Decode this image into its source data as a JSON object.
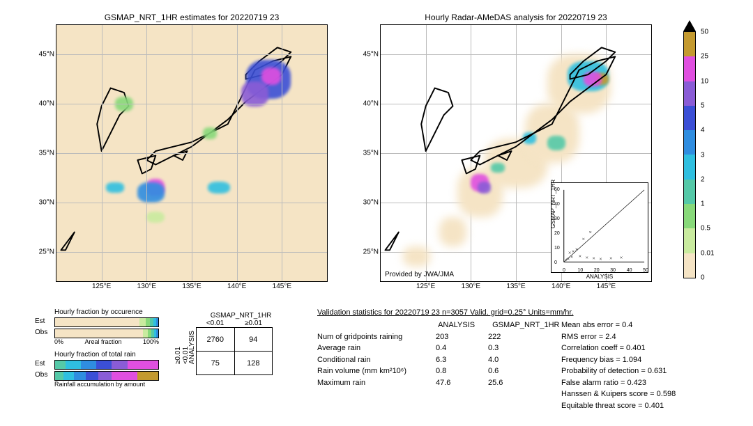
{
  "date_str": "20220719 23",
  "left_map": {
    "title": "GSMAP_NRT_1HR estimates for 20220719 23",
    "xlim": [
      120,
      150
    ],
    "ylim": [
      22,
      48
    ],
    "xticks": [
      125,
      130,
      135,
      140,
      145
    ],
    "yticks": [
      25,
      30,
      35,
      40,
      45
    ],
    "xtick_labels": [
      "125°E",
      "130°E",
      "135°E",
      "140°E",
      "145°E"
    ],
    "ytick_labels": [
      "25°N",
      "30°N",
      "35°N",
      "40°N",
      "45°N"
    ],
    "background": "#f5e4c5"
  },
  "right_map": {
    "title": "Hourly Radar-AMeDAS analysis for 20220719 23",
    "attribution": "Provided by JWA/JMA",
    "xlim": [
      120,
      150
    ],
    "ylim": [
      22,
      48
    ],
    "xticks": [
      125,
      130,
      135,
      140,
      145
    ],
    "yticks": [
      25,
      30,
      35,
      40,
      45
    ],
    "xtick_labels": [
      "125°E",
      "130°E",
      "135°E",
      "140°E",
      "145°E"
    ],
    "ytick_labels": [
      "25°N",
      "30°N",
      "35°N",
      "40°N",
      "45°N"
    ],
    "background": "#f5e4c5"
  },
  "colorbar": {
    "levels": [
      0,
      0.01,
      0.5,
      1,
      2,
      3,
      4,
      5,
      10,
      25,
      50
    ],
    "labels": [
      "0",
      "0.01",
      "0.5",
      "1",
      "2",
      "3",
      "4",
      "5",
      "10",
      "25",
      "50"
    ],
    "colors": [
      "#f5e4c5",
      "#c9eb9f",
      "#88d97a",
      "#55c9a8",
      "#2fbfe0",
      "#2f8de0",
      "#3b4fd6",
      "#8a5cd6",
      "#e04fe0",
      "#c49a2f"
    ]
  },
  "fraction_bars": {
    "occurrence_title": "Hourly fraction by occurence",
    "totalrain_title": "Hourly fraction of total rain",
    "accum_label": "Rainfall accumulation by amount",
    "areal_label": "Areal fraction",
    "pct0": "0%",
    "pct100": "100%",
    "est_label": "Est",
    "obs_label": "Obs",
    "occurrence_est_segs": [
      {
        "w": 82,
        "c": "#f5e4c5"
      },
      {
        "w": 6,
        "c": "#c9eb9f"
      },
      {
        "w": 4,
        "c": "#88d97a"
      },
      {
        "w": 3,
        "c": "#55c9a8"
      },
      {
        "w": 3,
        "c": "#2fbfe0"
      },
      {
        "w": 2,
        "c": "#2f8de0"
      }
    ],
    "occurrence_obs_segs": [
      {
        "w": 85,
        "c": "#f5e4c5"
      },
      {
        "w": 5,
        "c": "#c9eb9f"
      },
      {
        "w": 3,
        "c": "#88d97a"
      },
      {
        "w": 3,
        "c": "#55c9a8"
      },
      {
        "w": 2,
        "c": "#2fbfe0"
      },
      {
        "w": 2,
        "c": "#2f8de0"
      }
    ],
    "totalrain_est_segs": [
      {
        "w": 10,
        "c": "#55c9a8"
      },
      {
        "w": 15,
        "c": "#2fbfe0"
      },
      {
        "w": 15,
        "c": "#2f8de0"
      },
      {
        "w": 15,
        "c": "#3b4fd6"
      },
      {
        "w": 15,
        "c": "#8a5cd6"
      },
      {
        "w": 30,
        "c": "#e04fe0"
      }
    ],
    "totalrain_obs_segs": [
      {
        "w": 8,
        "c": "#55c9a8"
      },
      {
        "w": 10,
        "c": "#2fbfe0"
      },
      {
        "w": 12,
        "c": "#2f8de0"
      },
      {
        "w": 12,
        "c": "#3b4fd6"
      },
      {
        "w": 13,
        "c": "#8a5cd6"
      },
      {
        "w": 25,
        "c": "#e04fe0"
      },
      {
        "w": 20,
        "c": "#c49a2f"
      }
    ]
  },
  "contingency": {
    "col_title": "GSMAP_NRT_1HR",
    "row_title": "ANALYSIS",
    "col_lt": "<0.01",
    "col_ge": "≥0.01",
    "row_lt": "<0.01",
    "row_ge": "≥0.01",
    "a": "2760",
    "b": "94",
    "c": "75",
    "d": "128"
  },
  "validation": {
    "header": "Validation statistics for 20220719 23  n=3057 Valid. grid=0.25° Units=mm/hr.",
    "col1": "ANALYSIS",
    "col2": "GSMAP_NRT_1HR",
    "rows": [
      {
        "label": "Num of gridpoints raining",
        "v1": "203",
        "v2": "222"
      },
      {
        "label": "Average rain",
        "v1": "0.4",
        "v2": "0.3"
      },
      {
        "label": "Conditional rain",
        "v1": "6.3",
        "v2": "4.0"
      },
      {
        "label": "Rain volume (mm km²10⁶)",
        "v1": "0.8",
        "v2": "0.6"
      },
      {
        "label": "Maximum rain",
        "v1": "47.6",
        "v2": "25.6"
      }
    ],
    "metrics": [
      {
        "label": "Mean abs error = ",
        "v": "0.4"
      },
      {
        "label": "RMS error = ",
        "v": "2.4"
      },
      {
        "label": "Correlation coeff = ",
        "v": "0.401"
      },
      {
        "label": "Frequency bias = ",
        "v": "1.094"
      },
      {
        "label": "Probability of detection = ",
        "v": "0.631"
      },
      {
        "label": "False alarm ratio = ",
        "v": "0.423"
      },
      {
        "label": "Hanssen & Kuipers score = ",
        "v": "0.598"
      },
      {
        "label": "Equitable threat score = ",
        "v": "0.401"
      }
    ]
  },
  "scatter_inset": {
    "xlabel": "ANALYSIS",
    "ylabel": "GSMAP_NRT_1HR",
    "ticks": [
      0,
      10,
      20,
      30,
      40,
      50
    ]
  },
  "precip_blobs_left": [
    {
      "lon": 143.5,
      "lat": 42.5,
      "w": 5,
      "h": 4,
      "c": "#3b4fd6"
    },
    {
      "lon": 143.8,
      "lat": 42.8,
      "w": 2.2,
      "h": 1.8,
      "c": "#e04fe0"
    },
    {
      "lon": 142.0,
      "lat": 41.0,
      "w": 3,
      "h": 2.5,
      "c": "#8a5cd6"
    },
    {
      "lon": 131.0,
      "lat": 31.5,
      "w": 2.0,
      "h": 1.8,
      "c": "#e04fe0"
    },
    {
      "lon": 130.5,
      "lat": 31.0,
      "w": 3.0,
      "h": 2.0,
      "c": "#2f8de0"
    },
    {
      "lon": 138.0,
      "lat": 31.5,
      "w": 2.5,
      "h": 1.2,
      "c": "#2fbfe0"
    },
    {
      "lon": 126.5,
      "lat": 31.5,
      "w": 2.0,
      "h": 1.0,
      "c": "#2fbfe0"
    },
    {
      "lon": 127.5,
      "lat": 40.0,
      "w": 2.0,
      "h": 1.5,
      "c": "#88d97a"
    },
    {
      "lon": 131.0,
      "lat": 28.5,
      "w": 2.0,
      "h": 1.2,
      "c": "#c9eb9f"
    },
    {
      "lon": 137.0,
      "lat": 37.0,
      "w": 1.5,
      "h": 1.2,
      "c": "#88d97a"
    }
  ],
  "precip_blobs_right": [
    {
      "lon": 143.0,
      "lat": 42.8,
      "w": 4.5,
      "h": 3.0,
      "c": "#2fbfe0"
    },
    {
      "lon": 144.5,
      "lat": 42.5,
      "w": 1.5,
      "h": 1.2,
      "c": "#c49a2f"
    },
    {
      "lon": 143.5,
      "lat": 42.5,
      "w": 2.0,
      "h": 1.5,
      "c": "#e04fe0"
    },
    {
      "lon": 131.0,
      "lat": 32.0,
      "w": 2.0,
      "h": 1.8,
      "c": "#e04fe0"
    },
    {
      "lon": 131.5,
      "lat": 31.5,
      "w": 1.5,
      "h": 1.2,
      "c": "#8a5cd6"
    },
    {
      "lon": 139.5,
      "lat": 36.0,
      "w": 2.0,
      "h": 1.5,
      "c": "#55c9a8"
    },
    {
      "lon": 136.5,
      "lat": 36.5,
      "w": 1.5,
      "h": 1.2,
      "c": "#2fbfe0"
    },
    {
      "lon": 133.0,
      "lat": 33.5,
      "w": 1.5,
      "h": 1.0,
      "c": "#55c9a8"
    }
  ],
  "coverage_right": [
    {
      "lon": 128,
      "lat": 27,
      "w": 3,
      "h": 3
    },
    {
      "lon": 131,
      "lat": 31,
      "w": 5,
      "h": 5
    },
    {
      "lon": 135,
      "lat": 34,
      "w": 7,
      "h": 5
    },
    {
      "lon": 139,
      "lat": 37,
      "w": 6,
      "h": 6
    },
    {
      "lon": 142,
      "lat": 42,
      "w": 7,
      "h": 6
    },
    {
      "lon": 124,
      "lat": 24.5,
      "w": 3,
      "h": 2
    }
  ]
}
